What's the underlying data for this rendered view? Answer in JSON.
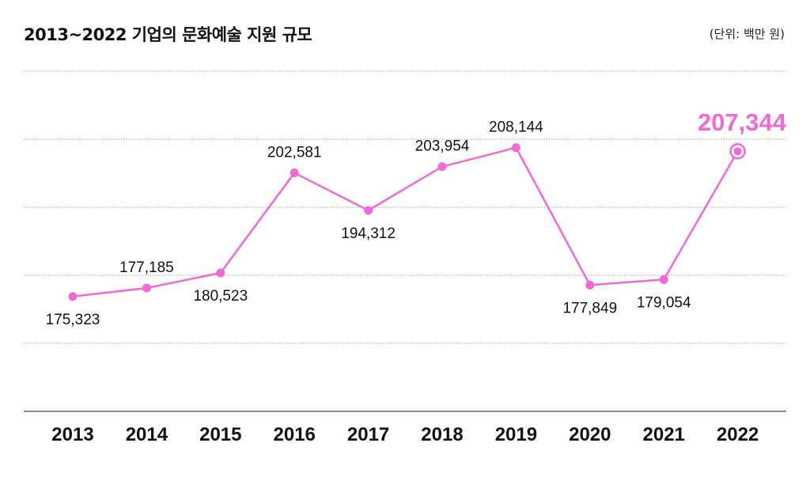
{
  "header": {
    "title": "2013~2022 기업의 문화예술 지원 규모",
    "unit": "(단위: 백만 원)"
  },
  "colors": {
    "series": "#f06ad6",
    "highlight": "#f06ad6",
    "text": "#111111",
    "grid": "#9a9a9a"
  },
  "chart_data": {
    "type": "line",
    "title": "2013~2022 기업의 문화예술 지원 규모",
    "unit": "(단위: 백만 원)",
    "xlabel": "",
    "ylabel": "",
    "categories": [
      "2013",
      "2014",
      "2015",
      "2016",
      "2017",
      "2018",
      "2019",
      "2020",
      "2021",
      "2022"
    ],
    "values": [
      175323,
      177185,
      180523,
      202581,
      194312,
      203954,
      208144,
      177849,
      179054,
      207344
    ],
    "labels": [
      "175,323",
      "177,185",
      "180,523",
      "202,581",
      "194,312",
      "203,954",
      "208,144",
      "177,849",
      "179,054",
      "207,344"
    ],
    "label_positions": [
      "below",
      "above",
      "below",
      "above",
      "below",
      "above",
      "above",
      "below",
      "below",
      "above"
    ],
    "highlight_index": 9,
    "ylim": [
      150000,
      225000
    ],
    "grid": true,
    "legend": "none"
  }
}
